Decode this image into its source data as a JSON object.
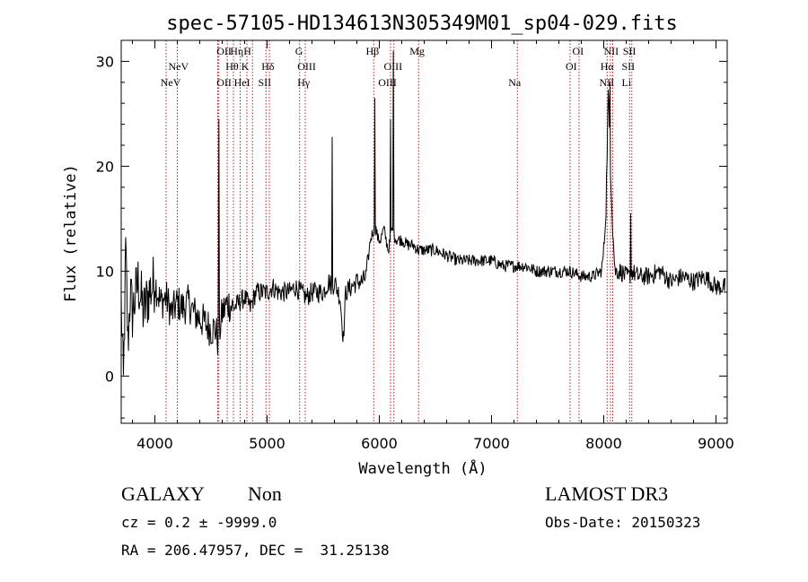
{
  "chart_data": {
    "type": "line",
    "title": "spec-57105-HD134613N305349M01_sp04-029.fits",
    "xlabel": "Wavelength (Å)",
    "ylabel": "Flux (relative)",
    "xlim": [
      3700,
      9100
    ],
    "ylim": [
      -4.5,
      32
    ],
    "x_ticks": [
      4000,
      5000,
      6000,
      7000,
      8000,
      9000
    ],
    "y_ticks": [
      0,
      10,
      20,
      30
    ],
    "line_color": "#000000",
    "marker_color": "#b22222",
    "series": [
      {
        "x": [
          3700,
          3720,
          3740,
          3760,
          3780,
          3800,
          3850,
          3900,
          3950,
          4000,
          4050,
          4100,
          4150,
          4200,
          4250,
          4300,
          4350,
          4400,
          4450,
          4500,
          4540,
          4560,
          4580,
          4600,
          4650,
          4700,
          4750,
          4800,
          4850,
          4900,
          4950,
          5000,
          5050,
          5100,
          5150,
          5200,
          5250,
          5300,
          5350,
          5400,
          5450,
          5500,
          5550,
          5580,
          5600,
          5650,
          5680,
          5700,
          5750,
          5800,
          5850,
          5880,
          5900,
          5920,
          5950,
          5970,
          5990,
          6010,
          6040,
          6060,
          6080,
          6100,
          6110,
          6130,
          6150,
          6200,
          6250,
          6300,
          6350,
          6400,
          6450,
          6500,
          6600,
          6700,
          6800,
          6900,
          7000,
          7100,
          7200,
          7300,
          7400,
          7500,
          7600,
          7700,
          7800,
          7900,
          7980,
          8000,
          8020,
          8040,
          8060,
          8080,
          8100,
          8150,
          8200,
          8230,
          8250,
          8300,
          8400,
          8500,
          8600,
          8700,
          8800,
          8900,
          8950,
          9000
        ],
        "y": [
          7,
          -1,
          12,
          3,
          8,
          6,
          9,
          6,
          8,
          9,
          7,
          7.5,
          6,
          7,
          6.5,
          7,
          6,
          5.5,
          5,
          4.5,
          4.5,
          3.5,
          4.5,
          6,
          7,
          6.5,
          7,
          7.5,
          6.5,
          8,
          8,
          8,
          8.5,
          8,
          8,
          8,
          8.5,
          8,
          7.5,
          8,
          8,
          8,
          9,
          8.5,
          9,
          7.5,
          3.5,
          8,
          8.5,
          9,
          9,
          9.5,
          11,
          13,
          14,
          14,
          13,
          13,
          14,
          13,
          12,
          13,
          14,
          13.5,
          13,
          13,
          12.5,
          12.5,
          12,
          12,
          12,
          12,
          11.5,
          11,
          11,
          11,
          11,
          10.5,
          10.5,
          10.5,
          10,
          10,
          10,
          10,
          9.5,
          9.5,
          10,
          12,
          16,
          27,
          20,
          14,
          10,
          10,
          9.5,
          9.5,
          10,
          9.5,
          9.5,
          10,
          9,
          9.5,
          9,
          9.5,
          9,
          8.5
        ]
      }
    ],
    "spikes": [
      {
        "x": 4570,
        "y": 24.5
      },
      {
        "x": 5580,
        "y": 22.8
      },
      {
        "x": 5960,
        "y": 26.5
      },
      {
        "x": 6100,
        "y": 24.5
      },
      {
        "x": 6125,
        "y": 31
      },
      {
        "x": 8055,
        "y": 28
      },
      {
        "x": 8240,
        "y": 15.5
      }
    ],
    "line_markers": [
      {
        "x": 4100
      },
      {
        "x": 4200
      },
      {
        "x": 4560
      },
      {
        "x": 4570
      },
      {
        "x": 4645
      },
      {
        "x": 4700
      },
      {
        "x": 4760
      },
      {
        "x": 4820
      },
      {
        "x": 4870
      },
      {
        "x": 4990
      },
      {
        "x": 5020
      },
      {
        "x": 5290
      },
      {
        "x": 5340
      },
      {
        "x": 5950
      },
      {
        "x": 6100
      },
      {
        "x": 6130
      },
      {
        "x": 6350
      },
      {
        "x": 7230
      },
      {
        "x": 7700
      },
      {
        "x": 7780
      },
      {
        "x": 8030
      },
      {
        "x": 8060
      },
      {
        "x": 8080
      },
      {
        "x": 8230
      },
      {
        "x": 8250
      }
    ],
    "line_labels": [
      {
        "x": 4120,
        "row": 1,
        "text": "NeV"
      },
      {
        "x": 4050,
        "row": 2,
        "text": "NeV"
      },
      {
        "x": 4550,
        "row": 0,
        "text": "OII"
      },
      {
        "x": 4550,
        "row": 2,
        "text": "OII"
      },
      {
        "x": 4670,
        "row": 0,
        "text": "Hη"
      },
      {
        "x": 4630,
        "row": 1,
        "text": "Hθ"
      },
      {
        "x": 4705,
        "row": 2,
        "text": "HeI"
      },
      {
        "x": 4790,
        "row": 0,
        "text": "H"
      },
      {
        "x": 4770,
        "row": 1,
        "text": "K"
      },
      {
        "x": 4950,
        "row": 1,
        "text": "Hδ"
      },
      {
        "x": 4920,
        "row": 2,
        "text": "SII"
      },
      {
        "x": 5250,
        "row": 0,
        "text": "G"
      },
      {
        "x": 5270,
        "row": 1,
        "text": "OIII"
      },
      {
        "x": 5270,
        "row": 2,
        "text": "Hγ"
      },
      {
        "x": 5880,
        "row": 0,
        "text": "Hβ"
      },
      {
        "x": 6040,
        "row": 1,
        "text": "OIII"
      },
      {
        "x": 5990,
        "row": 2,
        "text": "OIII"
      },
      {
        "x": 6270,
        "row": 0,
        "text": "Mg"
      },
      {
        "x": 7150,
        "row": 2,
        "text": "Na"
      },
      {
        "x": 7720,
        "row": 0,
        "text": "OI"
      },
      {
        "x": 7660,
        "row": 1,
        "text": "OI"
      },
      {
        "x": 8000,
        "row": 0,
        "text": "NII"
      },
      {
        "x": 7970,
        "row": 1,
        "text": "Hα"
      },
      {
        "x": 7960,
        "row": 2,
        "text": "NII"
      },
      {
        "x": 8170,
        "row": 0,
        "text": "SII"
      },
      {
        "x": 8160,
        "row": 1,
        "text": "SII"
      },
      {
        "x": 8160,
        "row": 2,
        "text": "Li"
      }
    ]
  },
  "info": {
    "object_class": "GALAXY",
    "subclass": "Non",
    "cz_line": "cz = 0.2 ± -9999.0",
    "radec_line": "RA = 206.47957, DEC =  31.25138",
    "survey": "LAMOST DR3",
    "obs_date_line": "Obs-Date: 20150323"
  }
}
